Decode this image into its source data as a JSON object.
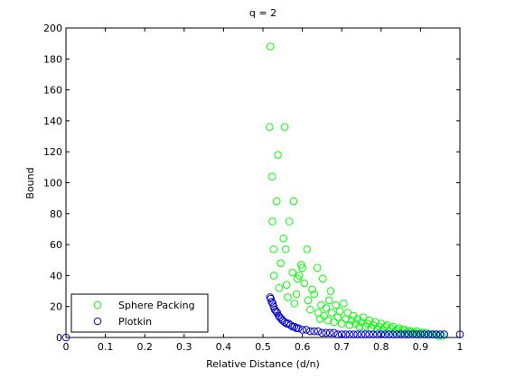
{
  "chart_data": {
    "type": "scatter",
    "title": "q = 2",
    "xlabel": "Relative Distance (d/n)",
    "ylabel": "Bound",
    "xlim": [
      0,
      1
    ],
    "ylim": [
      0,
      200
    ],
    "xticks": [
      "0",
      "0.1",
      "0.2",
      "0.3",
      "0.4",
      "0.5",
      "0.6",
      "0.7",
      "0.8",
      "0.9",
      "1"
    ],
    "yticks": [
      "0",
      "20",
      "40",
      "60",
      "80",
      "100",
      "120",
      "140",
      "160",
      "180",
      "200"
    ],
    "grid": false,
    "legend_position": "bottom-left",
    "series": [
      {
        "name": "Sphere Packing",
        "color": "#00ff00",
        "marker": "open-circle",
        "points": [
          [
            0.517,
            136
          ],
          [
            0.519,
            188
          ],
          [
            0.523,
            104
          ],
          [
            0.524,
            75
          ],
          [
            0.527,
            57
          ],
          [
            0.528,
            40
          ],
          [
            0.535,
            88
          ],
          [
            0.538,
            118
          ],
          [
            0.541,
            32
          ],
          [
            0.545,
            48
          ],
          [
            0.552,
            64
          ],
          [
            0.555,
            136
          ],
          [
            0.558,
            57
          ],
          [
            0.56,
            34
          ],
          [
            0.563,
            26
          ],
          [
            0.567,
            75
          ],
          [
            0.575,
            42
          ],
          [
            0.578,
            88
          ],
          [
            0.58,
            22
          ],
          [
            0.585,
            28
          ],
          [
            0.588,
            38
          ],
          [
            0.592,
            40
          ],
          [
            0.597,
            47
          ],
          [
            0.6,
            45
          ],
          [
            0.605,
            35
          ],
          [
            0.612,
            57
          ],
          [
            0.615,
            24
          ],
          [
            0.62,
            18
          ],
          [
            0.625,
            31
          ],
          [
            0.63,
            28
          ],
          [
            0.638,
            45
          ],
          [
            0.64,
            16
          ],
          [
            0.645,
            12
          ],
          [
            0.648,
            21
          ],
          [
            0.652,
            38
          ],
          [
            0.655,
            14
          ],
          [
            0.66,
            19
          ],
          [
            0.665,
            11
          ],
          [
            0.668,
            24
          ],
          [
            0.672,
            30
          ],
          [
            0.675,
            16
          ],
          [
            0.68,
            10
          ],
          [
            0.685,
            21
          ],
          [
            0.69,
            13
          ],
          [
            0.695,
            17
          ],
          [
            0.7,
            9
          ],
          [
            0.705,
            22
          ],
          [
            0.71,
            12
          ],
          [
            0.715,
            16
          ],
          [
            0.72,
            8
          ],
          [
            0.725,
            11
          ],
          [
            0.73,
            14
          ],
          [
            0.735,
            9
          ],
          [
            0.74,
            12
          ],
          [
            0.745,
            7
          ],
          [
            0.75,
            10
          ],
          [
            0.755,
            13
          ],
          [
            0.76,
            7
          ],
          [
            0.765,
            9
          ],
          [
            0.77,
            11
          ],
          [
            0.775,
            6
          ],
          [
            0.78,
            8
          ],
          [
            0.785,
            10
          ],
          [
            0.79,
            5
          ],
          [
            0.795,
            7
          ],
          [
            0.8,
            9
          ],
          [
            0.805,
            5
          ],
          [
            0.81,
            7
          ],
          [
            0.815,
            8
          ],
          [
            0.82,
            4
          ],
          [
            0.825,
            6
          ],
          [
            0.83,
            7
          ],
          [
            0.835,
            4
          ],
          [
            0.84,
            5
          ],
          [
            0.845,
            6
          ],
          [
            0.85,
            3
          ],
          [
            0.855,
            5
          ],
          [
            0.86,
            5
          ],
          [
            0.865,
            3
          ],
          [
            0.87,
            4
          ],
          [
            0.875,
            4
          ],
          [
            0.88,
            3
          ],
          [
            0.885,
            3
          ],
          [
            0.89,
            4
          ],
          [
            0.895,
            2
          ],
          [
            0.9,
            3
          ],
          [
            0.905,
            3
          ],
          [
            0.91,
            2
          ],
          [
            0.915,
            3
          ],
          [
            0.92,
            2
          ],
          [
            0.925,
            2
          ],
          [
            0.93,
            2
          ],
          [
            0.935,
            2
          ],
          [
            0.94,
            2
          ],
          [
            0.945,
            1
          ],
          [
            0.95,
            2
          ],
          [
            0.955,
            1
          ],
          [
            0.96,
            2
          ]
        ]
      },
      {
        "name": "Plotkin",
        "color": "#0000cc",
        "marker": "open-circle",
        "points": [
          [
            0.0,
            0
          ],
          [
            0.518,
            26
          ],
          [
            0.52,
            25
          ],
          [
            0.522,
            23
          ],
          [
            0.525,
            22
          ],
          [
            0.527,
            20
          ],
          [
            0.53,
            18
          ],
          [
            0.533,
            17
          ],
          [
            0.536,
            16
          ],
          [
            0.54,
            14
          ],
          [
            0.543,
            13
          ],
          [
            0.547,
            12
          ],
          [
            0.55,
            11
          ],
          [
            0.555,
            10
          ],
          [
            0.56,
            9
          ],
          [
            0.565,
            9
          ],
          [
            0.57,
            8
          ],
          [
            0.575,
            7
          ],
          [
            0.58,
            7
          ],
          [
            0.585,
            6
          ],
          [
            0.59,
            6
          ],
          [
            0.6,
            5
          ],
          [
            0.61,
            5
          ],
          [
            0.62,
            4
          ],
          [
            0.63,
            4
          ],
          [
            0.64,
            4
          ],
          [
            0.65,
            3
          ],
          [
            0.66,
            3
          ],
          [
            0.67,
            3
          ],
          [
            0.68,
            3
          ],
          [
            0.69,
            2
          ],
          [
            0.7,
            2
          ],
          [
            0.71,
            2
          ],
          [
            0.72,
            2
          ],
          [
            0.73,
            2
          ],
          [
            0.74,
            2
          ],
          [
            0.75,
            2
          ],
          [
            0.76,
            2
          ],
          [
            0.77,
            2
          ],
          [
            0.78,
            2
          ],
          [
            0.79,
            2
          ],
          [
            0.8,
            2
          ],
          [
            0.81,
            2
          ],
          [
            0.82,
            2
          ],
          [
            0.83,
            2
          ],
          [
            0.84,
            2
          ],
          [
            0.85,
            2
          ],
          [
            0.86,
            2
          ],
          [
            0.87,
            2
          ],
          [
            0.88,
            2
          ],
          [
            0.89,
            2
          ],
          [
            0.9,
            2
          ],
          [
            0.91,
            2
          ],
          [
            0.92,
            2
          ],
          [
            0.93,
            2
          ],
          [
            0.94,
            2
          ],
          [
            0.95,
            2
          ],
          [
            0.96,
            2
          ],
          [
            1.0,
            2
          ]
        ]
      }
    ]
  }
}
